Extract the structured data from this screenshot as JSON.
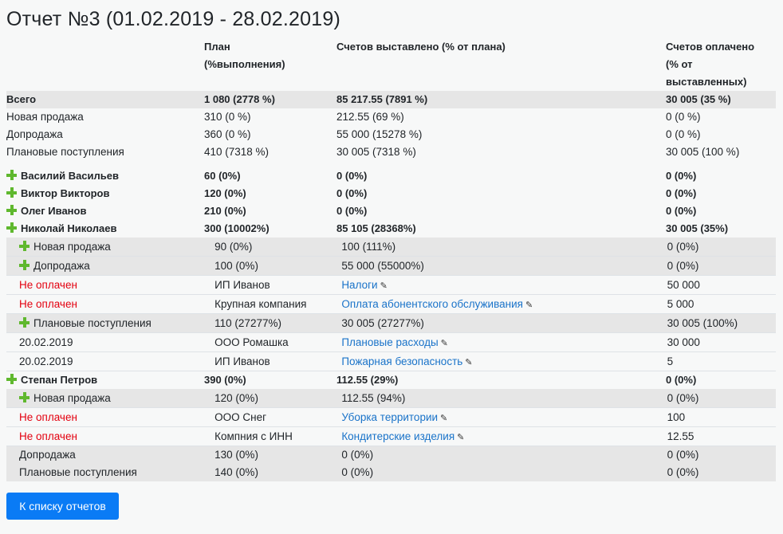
{
  "title": "Отчет №3 (01.02.2019 - 28.02.2019)",
  "headers": {
    "plan_l1": "План",
    "plan_l2": "(%выполнения)",
    "invoiced": "Счетов выставлено (% от плана)",
    "paid_l1": "Счетов оплачено",
    "paid_l2": "(% от",
    "paid_l3": "выставленных)"
  },
  "summary": [
    {
      "name": "Всего",
      "plan": "1 080 (2778 %)",
      "invoiced": "85 217.55 (7891 %)",
      "paid": "30 005 (35 %)"
    },
    {
      "name": "Новая продажа",
      "plan": "310 (0 %)",
      "invoiced": "212.55 (69 %)",
      "paid": "0 (0 %)"
    },
    {
      "name": "Допродажа",
      "plan": "360 (0 %)",
      "invoiced": "55 000 (15278 %)",
      "paid": "0 (0 %)"
    },
    {
      "name": "Плановые поступления",
      "plan": "410 (7318 %)",
      "invoiced": "30 005 (7318 %)",
      "paid": "30 005 (100 %)"
    }
  ],
  "managers": [
    {
      "name": "Василий Васильев",
      "plan": "60 (0%)",
      "invoiced": "0 (0%)",
      "paid": "0 (0%)"
    },
    {
      "name": "Виктор Викторов",
      "plan": "120 (0%)",
      "invoiced": "0 (0%)",
      "paid": "0 (0%)"
    },
    {
      "name": "Олег Иванов",
      "plan": "210 (0%)",
      "invoiced": "0 (0%)",
      "paid": "0 (0%)"
    },
    {
      "name": "Николай Николаев",
      "plan": "300 (10002%)",
      "invoiced": "85 105 (28368%)",
      "paid": "30 005 (35%)"
    },
    {
      "name": "Степан Петров",
      "plan": "390 (0%)",
      "invoiced": "112.55 (29%)",
      "paid": "0 (0%)"
    }
  ],
  "nikolaev": [
    {
      "type": "group",
      "name": "Новая продажа",
      "plan": "90 (0%)",
      "invoiced": "100 (111%)",
      "paid": "0 (0%)"
    },
    {
      "type": "group",
      "name": "Допродажа",
      "plan": "100 (0%)",
      "invoiced": "55 000 (55000%)",
      "paid": "0 (0%)"
    },
    {
      "type": "item",
      "status": "Не оплачен",
      "client": "ИП Иванов",
      "link": "Налоги",
      "amount": "50 000"
    },
    {
      "type": "item",
      "status": "Не оплачен",
      "client": "Крупная компания",
      "link": "Оплата абонентского обслуживания",
      "amount": "5 000"
    },
    {
      "type": "group",
      "name": "Плановые поступления",
      "plan": "110 (27277%)",
      "invoiced": "30 005 (27277%)",
      "paid": "30 005 (100%)"
    },
    {
      "type": "item",
      "status": "20.02.2019",
      "client": "ООО Ромашка",
      "link": "Плановые расходы",
      "amount": "30 000"
    },
    {
      "type": "item",
      "status": "20.02.2019",
      "client": "ИП Иванов",
      "link": "Пожарная безопасность",
      "amount": "5"
    }
  ],
  "petrov": [
    {
      "type": "group",
      "name": "Новая продажа",
      "plan": "120 (0%)",
      "invoiced": "112.55 (94%)",
      "paid": "0 (0%)"
    },
    {
      "type": "item",
      "status": "Не оплачен",
      "client": "ООО Снег",
      "link": "Уборка территории",
      "amount": "100"
    },
    {
      "type": "item",
      "status": "Не оплачен",
      "client": "Компния с ИНН",
      "link": "Кондитерские изделия",
      "amount": "12.55"
    },
    {
      "type": "group_noplus",
      "name": "Допродажа",
      "plan": "130 (0%)",
      "invoiced": "0 (0%)",
      "paid": "0 (0%)"
    },
    {
      "type": "group_noplus",
      "name": "Плановые поступления",
      "plan": "140 (0%)",
      "invoiced": "0 (0%)",
      "paid": "0 (0%)"
    }
  ],
  "back_button": "К списку отчетов",
  "colors": {
    "accent": "#0a7bf5",
    "link": "#1a73c9",
    "unpaid": "#e3000f",
    "plus": "#5fb82e"
  }
}
